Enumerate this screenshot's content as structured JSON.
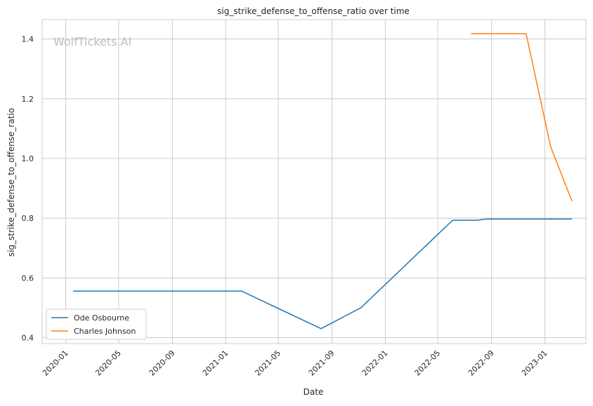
{
  "chart_data": {
    "type": "line",
    "title": "sig_strike_defense_to_offense_ratio over time",
    "xlabel": "Date",
    "ylabel": "sig_strike_defense_to_offense_ratio",
    "watermark": "WolfTickets.AI",
    "x_ticks": [
      "2020-01",
      "2020-05",
      "2020-09",
      "2021-01",
      "2021-05",
      "2021-09",
      "2022-01",
      "2022-05",
      "2022-09",
      "2023-01"
    ],
    "y_ticks": [
      "0.4",
      "0.6",
      "0.8",
      "1.0",
      "1.2",
      "1.4"
    ],
    "xlim": [
      "2019-11-08",
      "2023-04-05"
    ],
    "ylim": [
      0.38,
      1.465
    ],
    "grid": true,
    "legend_position": "lower-left",
    "series": [
      {
        "name": "Ode Osbourne",
        "color": "#1f77b4",
        "points": [
          {
            "x": "2020-01-18",
            "y": 0.556
          },
          {
            "x": "2021-02-06",
            "y": 0.556
          },
          {
            "x": "2021-08-07",
            "y": 0.43
          },
          {
            "x": "2021-11-06",
            "y": 0.5
          },
          {
            "x": "2022-06-04",
            "y": 0.793
          },
          {
            "x": "2022-07-30",
            "y": 0.793
          },
          {
            "x": "2022-08-20",
            "y": 0.797
          },
          {
            "x": "2023-03-04",
            "y": 0.797
          }
        ]
      },
      {
        "name": "Charles Johnson",
        "color": "#ff7f0e",
        "points": [
          {
            "x": "2022-07-16",
            "y": 1.418
          },
          {
            "x": "2022-11-19",
            "y": 1.418
          },
          {
            "x": "2023-01-14",
            "y": 1.04
          },
          {
            "x": "2023-03-04",
            "y": 0.857
          }
        ]
      }
    ]
  }
}
